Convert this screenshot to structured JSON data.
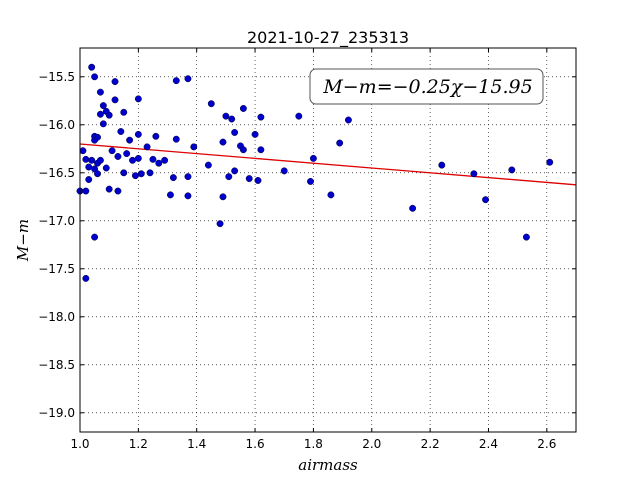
{
  "chart_data": {
    "type": "scatter",
    "title": "2021-10-27_235313",
    "xlabel": "airmass",
    "ylabel": "M−m",
    "xlim": [
      1.0,
      2.7
    ],
    "ylim": [
      -15.2,
      -19.2
    ],
    "y_inverted": true,
    "grid": true,
    "x_ticks": [
      "1.0",
      "1.2",
      "1.4",
      "1.6",
      "1.8",
      "2.0",
      "2.2",
      "2.4",
      "2.6"
    ],
    "y_ticks": [
      "−15.5",
      "−16.0",
      "−16.5",
      "−17.0",
      "−17.5",
      "−18.0",
      "−18.5",
      "−19.0"
    ],
    "annotation": "M−m=−0.25χ−15.95",
    "fit_line": {
      "slope": -0.25,
      "intercept": -15.95,
      "color": "#dd0000"
    },
    "series": [
      {
        "color": "#0000cc",
        "points": [
          [
            1.0,
            -16.69
          ],
          [
            1.01,
            -16.27
          ],
          [
            1.02,
            -16.36
          ],
          [
            1.02,
            -16.69
          ],
          [
            1.03,
            -16.44
          ],
          [
            1.03,
            -16.57
          ],
          [
            1.04,
            -16.37
          ],
          [
            1.04,
            -15.4
          ],
          [
            1.05,
            -16.46
          ],
          [
            1.05,
            -16.12
          ],
          [
            1.05,
            -16.16
          ],
          [
            1.05,
            -15.5
          ],
          [
            1.05,
            -17.17
          ],
          [
            1.06,
            -16.51
          ],
          [
            1.06,
            -16.13
          ],
          [
            1.06,
            -16.4
          ],
          [
            1.07,
            -15.89
          ],
          [
            1.07,
            -15.66
          ],
          [
            1.07,
            -16.37
          ],
          [
            1.08,
            -15.8
          ],
          [
            1.08,
            -15.99
          ],
          [
            1.09,
            -16.45
          ],
          [
            1.09,
            -15.86
          ],
          [
            1.1,
            -15.9
          ],
          [
            1.1,
            -16.67
          ],
          [
            1.11,
            -16.27
          ],
          [
            1.12,
            -15.55
          ],
          [
            1.12,
            -15.74
          ],
          [
            1.13,
            -16.33
          ],
          [
            1.13,
            -16.69
          ],
          [
            1.14,
            -16.07
          ],
          [
            1.15,
            -15.87
          ],
          [
            1.15,
            -16.5
          ],
          [
            1.16,
            -16.3
          ],
          [
            1.17,
            -16.16
          ],
          [
            1.18,
            -16.37
          ],
          [
            1.19,
            -16.53
          ],
          [
            1.2,
            -15.73
          ],
          [
            1.2,
            -16.1
          ],
          [
            1.2,
            -16.35
          ],
          [
            1.21,
            -16.51
          ],
          [
            1.23,
            -16.23
          ],
          [
            1.24,
            -16.5
          ],
          [
            1.25,
            -16.36
          ],
          [
            1.26,
            -16.12
          ],
          [
            1.27,
            -16.4
          ],
          [
            1.29,
            -16.37
          ],
          [
            1.31,
            -16.73
          ],
          [
            1.32,
            -16.55
          ],
          [
            1.33,
            -16.15
          ],
          [
            1.33,
            -15.54
          ],
          [
            1.37,
            -15.52
          ],
          [
            1.37,
            -16.54
          ],
          [
            1.37,
            -16.74
          ],
          [
            1.39,
            -16.23
          ],
          [
            1.44,
            -16.42
          ],
          [
            1.45,
            -15.78
          ],
          [
            1.48,
            -17.03
          ],
          [
            1.49,
            -16.75
          ],
          [
            1.49,
            -16.18
          ],
          [
            1.5,
            -15.91
          ],
          [
            1.51,
            -16.54
          ],
          [
            1.52,
            -15.94
          ],
          [
            1.53,
            -16.08
          ],
          [
            1.53,
            -16.48
          ],
          [
            1.55,
            -16.22
          ],
          [
            1.56,
            -15.83
          ],
          [
            1.56,
            -16.26
          ],
          [
            1.58,
            -16.56
          ],
          [
            1.6,
            -16.1
          ],
          [
            1.61,
            -16.58
          ],
          [
            1.62,
            -15.92
          ],
          [
            1.62,
            -16.26
          ],
          [
            1.7,
            -16.48
          ],
          [
            1.75,
            -15.91
          ],
          [
            1.79,
            -16.59
          ],
          [
            1.8,
            -16.35
          ],
          [
            1.86,
            -16.73
          ],
          [
            1.89,
            -16.19
          ],
          [
            1.92,
            -15.95
          ],
          [
            2.14,
            -16.87
          ],
          [
            2.24,
            -16.42
          ],
          [
            2.35,
            -16.51
          ],
          [
            2.39,
            -16.78
          ],
          [
            2.48,
            -16.47
          ],
          [
            2.53,
            -17.17
          ],
          [
            2.61,
            -16.39
          ],
          [
            1.02,
            -17.6
          ]
        ]
      }
    ]
  }
}
